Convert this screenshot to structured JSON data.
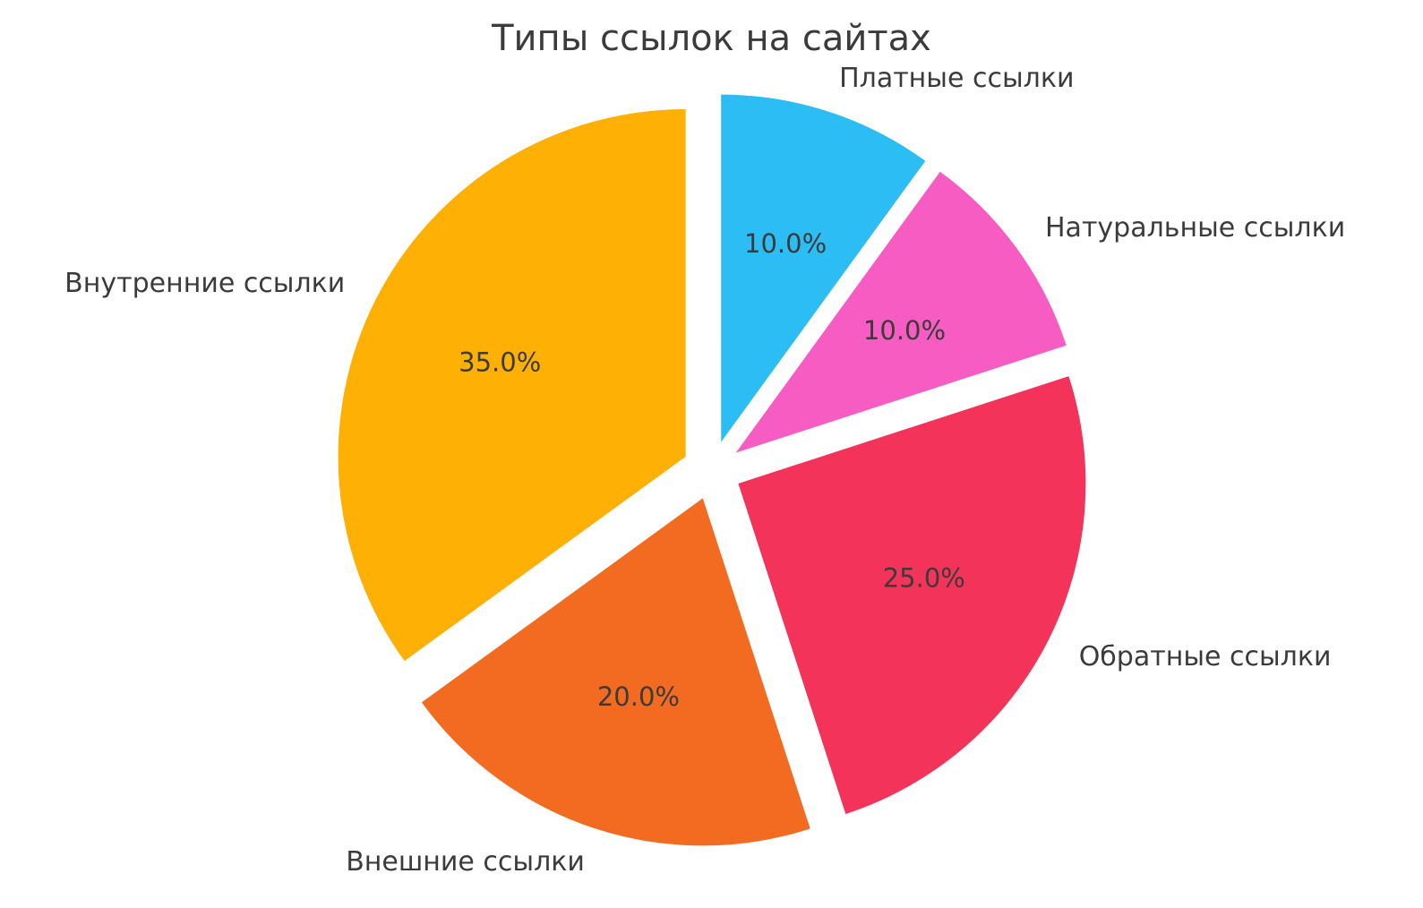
{
  "chart_data": {
    "type": "pie",
    "title": "Типы ссылок на сайтах",
    "categories": [
      "Платные ссылки",
      "Натуральные ссылки",
      "Обратные ссылки",
      "Внешние ссылки",
      "Внутренние ссылки"
    ],
    "values": [
      10.0,
      10.0,
      25.0,
      20.0,
      35.0
    ],
    "percent_labels": [
      "10.0%",
      "10.0%",
      "25.0%",
      "20.0%",
      "35.0%"
    ],
    "colors": [
      "#2BBDF4",
      "#F65CC1",
      "#F4335B",
      "#F26B21",
      "#FFB005"
    ],
    "start_angle": 90,
    "direction": "clockwise",
    "explode": 0.085,
    "label_distance": 1.1,
    "pct_distance": 0.6,
    "text_color": "#3b3b3b",
    "background": "#ffffff",
    "legend": "none",
    "grid": false
  }
}
